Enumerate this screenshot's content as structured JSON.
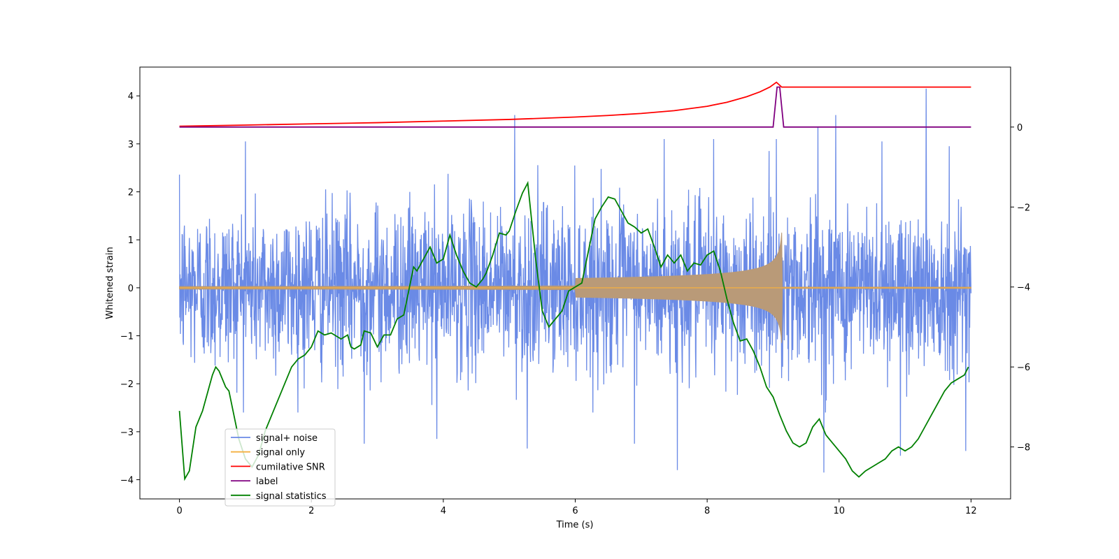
{
  "chart_data": {
    "type": "line",
    "title": "",
    "xlabel": "Time (s)",
    "ylabel": "Whitened strain",
    "ylabel_right": "",
    "xlim": [
      -0.6,
      12.6
    ],
    "ylim": [
      -4.4,
      4.6
    ],
    "ylim_right": [
      -9.3,
      1.5
    ],
    "xticks": [
      0,
      2,
      4,
      6,
      8,
      10,
      12
    ],
    "yticks": [
      -4,
      -3,
      -2,
      -1,
      0,
      1,
      2,
      3,
      4
    ],
    "yticks_right": [
      -8,
      -6,
      -4,
      -2,
      0
    ],
    "grid": false,
    "legend_position": "lower-left",
    "legend": [
      "signal+ noise",
      "signal only",
      "cumilative SNR",
      "label",
      "signal statistics"
    ],
    "colors": {
      "signal_noise": "#6a8ae6",
      "signal_only": "#f5b041",
      "signal_only_overlap": "#b99a78",
      "cumulative_snr": "#ff0000",
      "label": "#800080",
      "signal_statistics": "#008000"
    },
    "series": [
      {
        "name": "signal+ noise",
        "axis": "left",
        "description_values": "whitened noise, amplitude roughly within -2.6..2.9 with spikes",
        "spikes": [
          [
            5.08,
            3.6
          ],
          [
            11.32,
            4.15
          ],
          [
            9.68,
            3.35
          ],
          [
            9.95,
            3.6
          ],
          [
            9.05,
            3.1
          ],
          [
            7.55,
            -3.8
          ],
          [
            9.77,
            -3.85
          ],
          [
            10.93,
            -3.5
          ],
          [
            11.92,
            -3.4
          ],
          [
            5.27,
            -3.35
          ],
          [
            2.8,
            -3.25
          ],
          [
            6.9,
            -3.25
          ],
          [
            3.9,
            -3.15
          ],
          [
            10.65,
            3.05
          ],
          [
            8.1,
            3.1
          ],
          [
            1.0,
            3.05
          ],
          [
            11.67,
            2.95
          ],
          [
            7.35,
            3.1
          ]
        ]
      },
      {
        "name": "signal only",
        "axis": "left",
        "t_merger": 9.13,
        "peak_amplitude": 1.15,
        "base_amplitude": 0.015
      },
      {
        "name": "cumilative SNR",
        "axis": "right",
        "x": [
          0,
          1,
          2,
          3,
          4,
          5,
          6,
          6.5,
          7,
          7.5,
          8,
          8.3,
          8.6,
          8.8,
          8.95,
          9.05,
          9.13,
          12
        ],
        "values": [
          0.02,
          0.05,
          0.08,
          0.11,
          0.15,
          0.19,
          0.25,
          0.29,
          0.34,
          0.41,
          0.52,
          0.62,
          0.76,
          0.88,
          1.0,
          1.12,
          1.0,
          1.0
        ]
      },
      {
        "name": "label",
        "axis": "right",
        "x": [
          0,
          9.0,
          9.06,
          9.1,
          9.16,
          12
        ],
        "values": [
          0,
          0,
          1.0,
          1.0,
          0,
          0
        ]
      },
      {
        "name": "signal statistics",
        "axis": "right",
        "x": [
          0,
          0.08,
          0.15,
          0.25,
          0.35,
          0.45,
          0.5,
          0.55,
          0.6,
          0.7,
          0.75,
          0.8,
          0.9,
          1.0,
          1.1,
          1.2,
          1.3,
          1.4,
          1.5,
          1.6,
          1.7,
          1.8,
          1.9,
          2.0,
          2.1,
          2.2,
          2.3,
          2.4,
          2.45,
          2.55,
          2.6,
          2.65,
          2.7,
          2.75,
          2.8,
          2.9,
          3.0,
          3.1,
          3.2,
          3.3,
          3.4,
          3.5,
          3.55,
          3.6,
          3.7,
          3.8,
          3.9,
          4.0,
          4.1,
          4.2,
          4.3,
          4.4,
          4.5,
          4.6,
          4.65,
          4.75,
          4.85,
          4.95,
          5.0,
          5.1,
          5.2,
          5.28,
          5.4,
          5.5,
          5.6,
          5.7,
          5.8,
          5.9,
          6.0,
          6.1,
          6.2,
          6.3,
          6.4,
          6.5,
          6.6,
          6.7,
          6.8,
          6.9,
          7.0,
          7.1,
          7.2,
          7.3,
          7.4,
          7.5,
          7.6,
          7.7,
          7.8,
          7.9,
          8.0,
          8.1,
          8.2,
          8.3,
          8.4,
          8.5,
          8.6,
          8.7,
          8.8,
          8.9,
          9.0,
          9.1,
          9.2,
          9.3,
          9.4,
          9.5,
          9.6,
          9.7,
          9.8,
          9.9,
          10.0,
          10.1,
          10.2,
          10.3,
          10.4,
          10.5,
          10.6,
          10.7,
          10.8,
          10.9,
          11.0,
          11.1,
          11.2,
          11.3,
          11.4,
          11.5,
          11.6,
          11.7,
          11.8,
          11.9,
          11.96
        ],
        "values": [
          -7.1,
          -8.8,
          -8.6,
          -7.5,
          -7.1,
          -6.5,
          -6.2,
          -6.0,
          -6.1,
          -6.5,
          -6.6,
          -7.0,
          -7.8,
          -8.3,
          -8.5,
          -8.2,
          -7.6,
          -7.2,
          -6.8,
          -6.4,
          -6.0,
          -5.8,
          -5.7,
          -5.5,
          -5.1,
          -5.2,
          -5.15,
          -5.25,
          -5.3,
          -5.2,
          -5.5,
          -5.55,
          -5.5,
          -5.45,
          -5.1,
          -5.15,
          -5.5,
          -5.2,
          -5.2,
          -4.8,
          -4.7,
          -3.9,
          -3.5,
          -3.6,
          -3.3,
          -3.0,
          -3.4,
          -3.3,
          -2.7,
          -3.2,
          -3.6,
          -3.9,
          -4.0,
          -3.8,
          -3.65,
          -3.2,
          -2.65,
          -2.7,
          -2.6,
          -2.1,
          -1.65,
          -1.4,
          -3.3,
          -4.6,
          -5.0,
          -4.8,
          -4.6,
          -4.1,
          -4.0,
          -3.9,
          -3.1,
          -2.3,
          -2.0,
          -1.75,
          -1.8,
          -2.1,
          -2.4,
          -2.5,
          -2.65,
          -2.55,
          -3.0,
          -3.5,
          -3.2,
          -3.4,
          -3.2,
          -3.6,
          -3.4,
          -3.45,
          -3.2,
          -3.1,
          -3.6,
          -4.3,
          -4.9,
          -5.35,
          -5.3,
          -5.6,
          -6.0,
          -6.5,
          -6.75,
          -7.2,
          -7.6,
          -7.9,
          -8.0,
          -7.9,
          -7.5,
          -7.3,
          -7.7,
          -7.9,
          -8.1,
          -8.3,
          -8.6,
          -8.75,
          -8.6,
          -8.5,
          -8.4,
          -8.3,
          -8.1,
          -8.0,
          -8.1,
          -8.0,
          -7.8,
          -7.5,
          -7.2,
          -6.9,
          -6.6,
          -6.4,
          -6.3,
          -6.2,
          -6.0
        ]
      }
    ]
  }
}
